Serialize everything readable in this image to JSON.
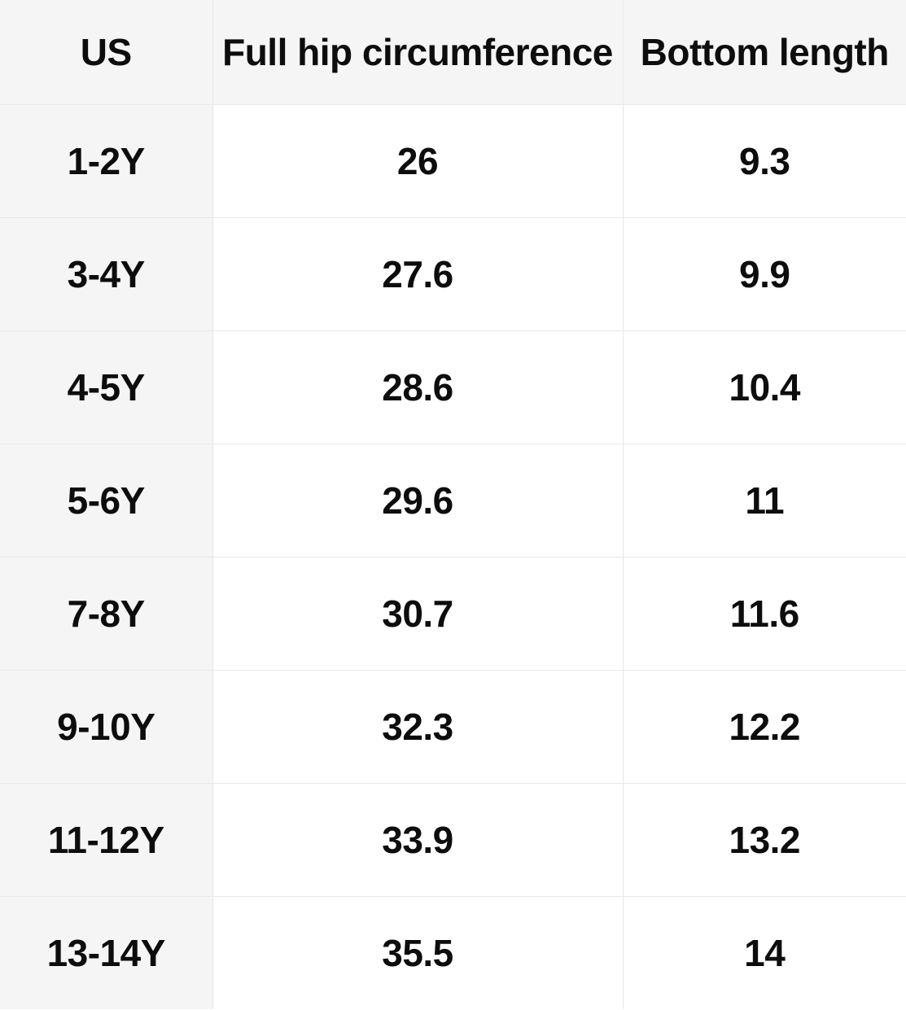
{
  "size_chart": {
    "columns": [
      {
        "label": "US"
      },
      {
        "label": "Full hip circumference"
      },
      {
        "label": "Bottom length"
      }
    ],
    "rows": [
      {
        "us": "1-2Y",
        "full_hip_circumference": "26",
        "bottom_length": "9.3"
      },
      {
        "us": "3-4Y",
        "full_hip_circumference": "27.6",
        "bottom_length": "9.9"
      },
      {
        "us": "4-5Y",
        "full_hip_circumference": "28.6",
        "bottom_length": "10.4"
      },
      {
        "us": "5-6Y",
        "full_hip_circumference": "29.6",
        "bottom_length": "11"
      },
      {
        "us": "7-8Y",
        "full_hip_circumference": "30.7",
        "bottom_length": "11.6"
      },
      {
        "us": "9-10Y",
        "full_hip_circumference": "32.3",
        "bottom_length": "12.2"
      },
      {
        "us": "11-12Y",
        "full_hip_circumference": "33.9",
        "bottom_length": "13.2"
      },
      {
        "us": "13-14Y",
        "full_hip_circumference": "35.5",
        "bottom_length": "14"
      }
    ],
    "colors": {
      "shaded_cell_bg": "#f5f5f5",
      "body_cell_bg": "#ffffff",
      "border": "#e8e8e9",
      "text": "#0d0d0d"
    }
  }
}
